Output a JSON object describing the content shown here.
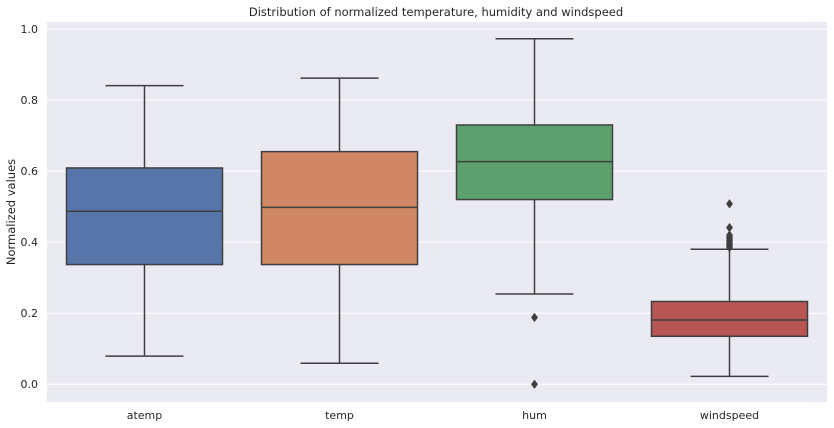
{
  "chart_data": {
    "type": "box",
    "title": "Distribution of normalized temperature, humidity and windspeed",
    "xlabel": "",
    "ylabel": "Normalized values",
    "ylim": [
      -0.05,
      1.02
    ],
    "yticks": [
      "0.0",
      "0.2",
      "0.4",
      "0.6",
      "0.8",
      "1.0"
    ],
    "grid": true,
    "categories": [
      "atemp",
      "temp",
      "hum",
      "windspeed"
    ],
    "boxes": [
      {
        "name": "atemp",
        "color": "#5875a9",
        "whisker_low": 0.079,
        "q1": 0.337,
        "median": 0.487,
        "q3": 0.609,
        "whisker_high": 0.841,
        "outliers": []
      },
      {
        "name": "temp",
        "color": "#cf8863",
        "whisker_low": 0.059,
        "q1": 0.337,
        "median": 0.498,
        "q3": 0.655,
        "whisker_high": 0.862,
        "outliers": []
      },
      {
        "name": "hum",
        "color": "#5ca06e",
        "whisker_low": 0.254,
        "q1": 0.52,
        "median": 0.627,
        "q3": 0.73,
        "whisker_high": 0.973,
        "outliers": [
          0.188,
          0.0
        ]
      },
      {
        "name": "windspeed",
        "color": "#b85555",
        "whisker_low": 0.022,
        "q1": 0.135,
        "median": 0.181,
        "q3": 0.233,
        "whisker_high": 0.38,
        "outliers": [
          0.385,
          0.39,
          0.395,
          0.4,
          0.405,
          0.41,
          0.415,
          0.42,
          0.441,
          0.508
        ]
      }
    ],
    "colors": {
      "plot_background": "#eaeaf2",
      "grid": "#ffffff",
      "edge": "#3f3f3f"
    }
  }
}
